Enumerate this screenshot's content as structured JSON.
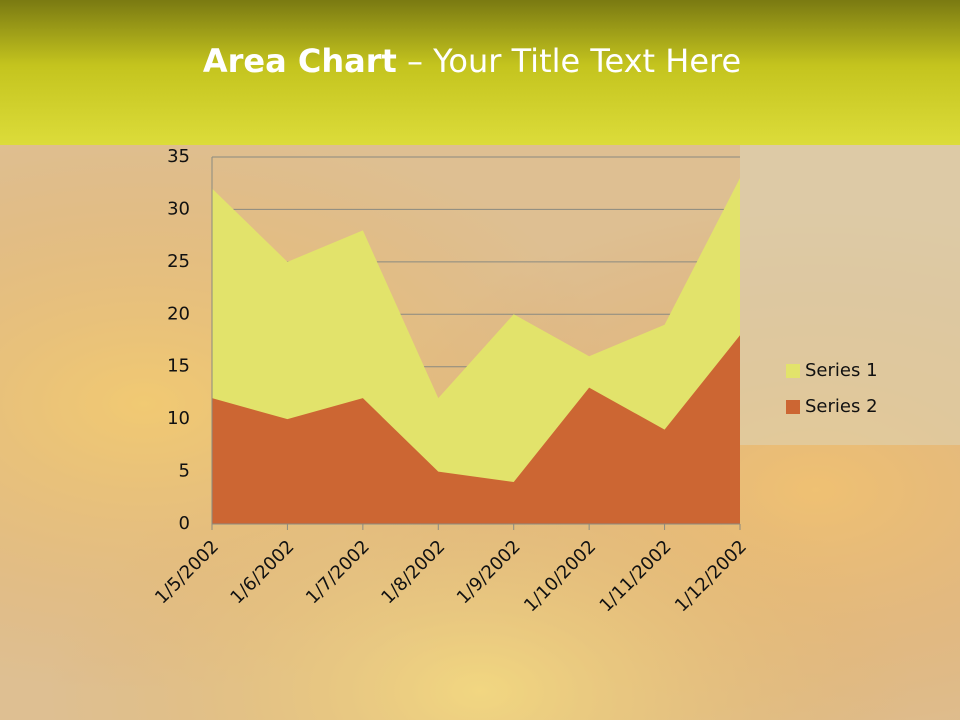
{
  "chart_data": {
    "type": "area",
    "title_bold": "Area Chart",
    "title_rest": "– Your Title Text Here",
    "categories": [
      "1/5/2002",
      "1/6/2002",
      "1/7/2002",
      "1/8/2002",
      "1/9/2002",
      "1/10/2002",
      "1/11/2002",
      "1/12/2002"
    ],
    "series": [
      {
        "name": "Series 1",
        "color": "#e2e36b",
        "values": [
          32,
          25,
          28,
          12,
          20,
          16,
          19,
          33
        ]
      },
      {
        "name": "Series 2",
        "color": "#cc6633",
        "values": [
          12,
          10,
          12,
          5,
          4,
          13,
          9,
          18
        ]
      }
    ],
    "ylim": [
      0,
      35
    ],
    "yticks": [
      0,
      5,
      10,
      15,
      20,
      25,
      30,
      35
    ],
    "grid": true,
    "legend": "right"
  }
}
